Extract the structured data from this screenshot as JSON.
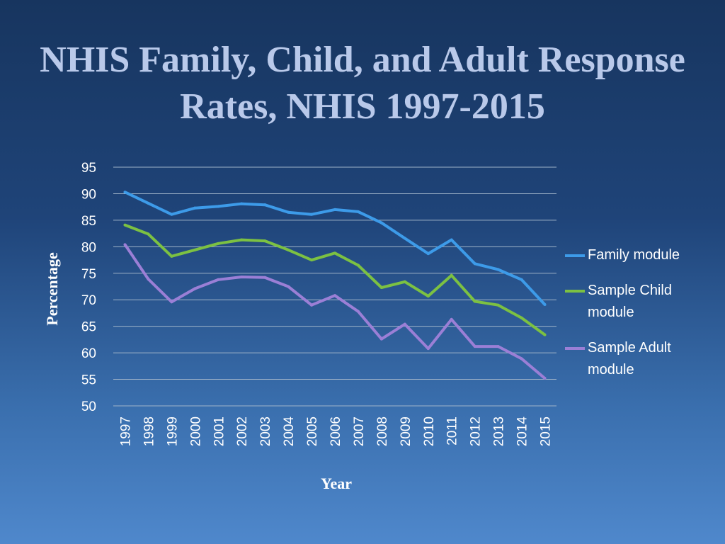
{
  "chart_data": {
    "type": "line",
    "title": "NHIS Family, Child, and Adult Response Rates, NHIS 1997-2015",
    "xlabel": "Year",
    "ylabel": "Percentage",
    "ylim": [
      50,
      95
    ],
    "yticks": [
      50,
      55,
      60,
      65,
      70,
      75,
      80,
      85,
      90,
      95
    ],
    "categories": [
      "1997",
      "1998",
      "1999",
      "2000",
      "2001",
      "2002",
      "2003",
      "2004",
      "2005",
      "2006",
      "2007",
      "2008",
      "2009",
      "2010",
      "2011",
      "2012",
      "2013",
      "2014",
      "2015"
    ],
    "grid": true,
    "legend_position": "right",
    "series": [
      {
        "name": "Family module",
        "color": "#3d9be9",
        "values": [
          90.3,
          88.2,
          86.1,
          87.3,
          87.6,
          88.1,
          87.9,
          86.5,
          86.1,
          87.0,
          86.6,
          84.5,
          81.6,
          78.7,
          81.3,
          76.8,
          75.7,
          73.8,
          69.1
        ]
      },
      {
        "name": "Sample Child module",
        "color": "#7cc142",
        "values": [
          84.1,
          82.4,
          78.2,
          79.4,
          80.6,
          81.3,
          81.1,
          79.4,
          77.5,
          78.8,
          76.5,
          72.3,
          73.4,
          70.7,
          74.6,
          69.7,
          69.0,
          66.6,
          63.4
        ]
      },
      {
        "name": "Sample Adult module",
        "color": "#9b7fd6",
        "values": [
          80.4,
          73.9,
          69.6,
          72.1,
          73.8,
          74.3,
          74.2,
          72.5,
          69.0,
          70.8,
          67.8,
          62.6,
          65.4,
          60.8,
          66.3,
          61.2,
          61.2,
          58.9,
          55.2
        ]
      }
    ]
  }
}
